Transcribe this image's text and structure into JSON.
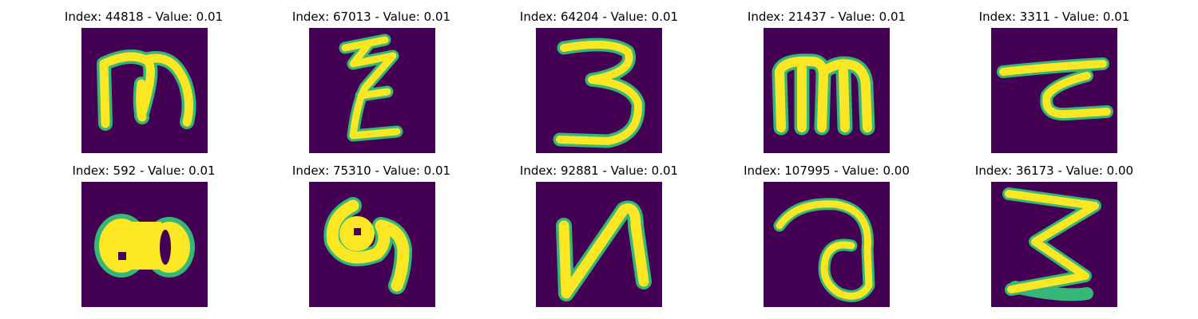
{
  "panels": [
    {
      "title": "Index: 44818 - Value: 0.01",
      "glyph": "m-loop"
    },
    {
      "title": "Index: 67013 - Value: 0.01",
      "glyph": "zigzag"
    },
    {
      "title": "Index: 64204 - Value: 0.01",
      "glyph": "three"
    },
    {
      "title": "Index: 21437 - Value: 0.01",
      "glyph": "m-block"
    },
    {
      "title": "Index: 3311 - Value: 0.01",
      "glyph": "hook-bar"
    },
    {
      "title": "Index: 592 - Value: 0.01",
      "glyph": "blob"
    },
    {
      "title": "Index: 75310 - Value: 0.01",
      "glyph": "curl"
    },
    {
      "title": "Index: 92881 - Value: 0.01",
      "glyph": "n-shape"
    },
    {
      "title": "Index: 107995 - Value: 0.00",
      "glyph": "loop-a"
    },
    {
      "title": "Index: 36173 - Value: 0.00",
      "glyph": "three-sharp"
    }
  ],
  "colors": {
    "background": "#440154",
    "stroke": "#fde725",
    "edge": "#35b779"
  }
}
